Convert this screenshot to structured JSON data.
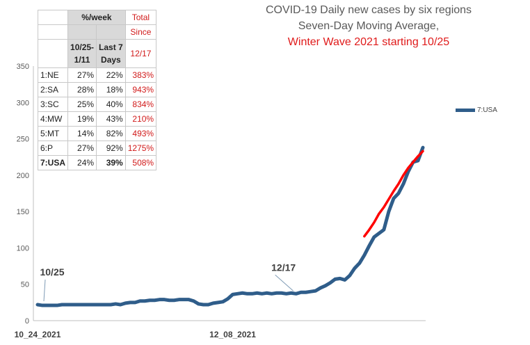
{
  "chart_data": {
    "type": "line",
    "title_lines": [
      "COVID-19 Daily new cases by six regions",
      "Seven-Day Moving Average,",
      "Winter Wave 2021 starting 10/25"
    ],
    "x_tick_labels": [
      "10_24_2021",
      "12_08_2021"
    ],
    "ylim": [
      0,
      350
    ],
    "yticks": [
      "0",
      "50",
      "100",
      "150",
      "200",
      "250",
      "300",
      "350"
    ],
    "grid": false,
    "legend_position": "right",
    "series": [
      {
        "name": "7:USA",
        "color": "#2f5d8a",
        "x": [
          0,
          1,
          2,
          3,
          4,
          5,
          6,
          7,
          8,
          9,
          10,
          11,
          12,
          13,
          14,
          15,
          16,
          17,
          18,
          19,
          20,
          21,
          22,
          23,
          24,
          25,
          26,
          27,
          28,
          29,
          30,
          31,
          32,
          33,
          34,
          35,
          36,
          37,
          38,
          39,
          40,
          41,
          42,
          43,
          44,
          45,
          46,
          47,
          48,
          49,
          50,
          51,
          52,
          53,
          54,
          55,
          56,
          57,
          58,
          59,
          60,
          61,
          62,
          63,
          64,
          65,
          66,
          67,
          68,
          69,
          70,
          71,
          72,
          73,
          74,
          75,
          76,
          77,
          78,
          79
        ],
        "values": [
          22,
          21,
          21,
          21,
          21,
          22,
          22,
          22,
          22,
          22,
          22,
          22,
          22,
          22,
          22,
          22,
          23,
          22,
          24,
          25,
          25,
          27,
          27,
          28,
          28,
          29,
          29,
          28,
          28,
          29,
          29,
          29,
          27,
          23,
          22,
          22,
          24,
          25,
          26,
          30,
          36,
          37,
          38,
          37,
          37,
          38,
          37,
          38,
          37,
          38,
          38,
          37,
          38,
          37,
          39,
          39,
          40,
          41,
          45,
          48,
          52,
          57,
          58,
          56,
          62,
          72,
          79,
          90,
          103,
          115,
          120,
          125,
          150,
          168,
          175,
          188,
          205,
          218,
          220,
          238
        ]
      },
      {
        "name": "trend",
        "color": "#ff0000",
        "x": [
          67,
          68,
          69,
          70,
          71,
          72,
          73,
          74,
          75,
          76,
          77,
          78,
          79
        ],
        "values": [
          116,
          125,
          135,
          147,
          156,
          167,
          178,
          188,
          200,
          210,
          218,
          226,
          233
        ]
      }
    ],
    "annotations": [
      {
        "text": "10/25",
        "x": 1,
        "y": 22
      },
      {
        "text": "12/17",
        "x": 53,
        "y": 38
      }
    ]
  },
  "table": {
    "header": {
      "col1_top": "%/week",
      "col1_a": "10/25-\n1/11",
      "col1_b": "Last 7\nDays",
      "col_total_1": "Total",
      "col_total_2": "Since",
      "col_total_3": "12/17"
    },
    "rows": [
      {
        "region": "1:NE",
        "a": "27%",
        "b": "22%",
        "total": "383%"
      },
      {
        "region": "2:SA",
        "a": "28%",
        "b": "18%",
        "total": "943%"
      },
      {
        "region": "3:SC",
        "a": "25%",
        "b": "40%",
        "total": "834%"
      },
      {
        "region": "4:MW",
        "a": "19%",
        "b": "43%",
        "total": "210%"
      },
      {
        "region": "5:MT",
        "a": "14%",
        "b": "82%",
        "total": "493%"
      },
      {
        "region": "6:P",
        "a": "27%",
        "b": "92%",
        "total": "1275%"
      },
      {
        "region": "7:USA",
        "a": "24%",
        "b": "39%",
        "total": "508%"
      }
    ]
  }
}
